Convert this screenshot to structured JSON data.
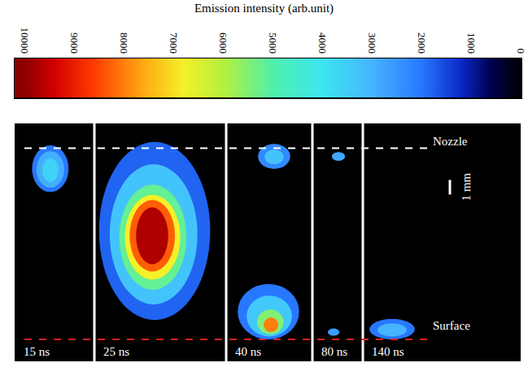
{
  "chart_data": {
    "type": "image_sequence",
    "title": "Emission intensity (arb.unit)",
    "colorbar": {
      "range": [
        10200,
        0
      ],
      "ticks": [
        10000,
        9000,
        8000,
        7000,
        6000,
        5000,
        4000,
        3000,
        2000,
        1000,
        0
      ]
    },
    "zlim": [
      0,
      10000
    ],
    "ylim": [
      14.6,
      -1.7
    ],
    "tick_labels": false,
    "nozzle": {
      "label": "Nozzle",
      "y": 0
    },
    "surface": {
      "label": "Surface",
      "y": 13.1
    },
    "scale_bar": {
      "label": "1 mm",
      "length": 1
    },
    "panels": [
      {
        "label": "15 ns",
        "blobs": [
          {
            "x": 2.44,
            "y": 1.4,
            "rx": 1.25,
            "ry": 1.6,
            "intensity": 2000
          },
          {
            "x": 2.44,
            "y": 1.45,
            "rx": 0.95,
            "ry": 1.25,
            "intensity": 2900
          },
          {
            "x": 2.44,
            "y": 1.5,
            "rx": 0.55,
            "ry": 0.8,
            "intensity": 3600
          }
        ]
      },
      {
        "label": "25 ns",
        "blobs": [
          {
            "x": 4.12,
            "y": 5.67,
            "rx": 3.8,
            "ry": 6.1,
            "intensity": 1800
          },
          {
            "x": 4.05,
            "y": 5.9,
            "rx": 3.0,
            "ry": 4.8,
            "intensity": 3300
          },
          {
            "x": 4.0,
            "y": 6.1,
            "rx": 2.3,
            "ry": 3.6,
            "intensity": 5200
          },
          {
            "x": 3.98,
            "y": 6.1,
            "rx": 1.9,
            "ry": 2.9,
            "intensity": 6800
          },
          {
            "x": 3.96,
            "y": 6.0,
            "rx": 1.55,
            "ry": 2.45,
            "intensity": 8300
          },
          {
            "x": 3.95,
            "y": 6.0,
            "rx": 1.1,
            "ry": 1.95,
            "intensity": 9700
          }
        ]
      },
      {
        "label": "40 ns",
        "blobs": [
          {
            "x": 3.28,
            "y": 0.56,
            "rx": 1.1,
            "ry": 0.85,
            "intensity": 2300
          },
          {
            "x": 3.28,
            "y": 0.6,
            "rx": 0.65,
            "ry": 0.5,
            "intensity": 3300
          },
          {
            "x": 2.89,
            "y": 11.2,
            "rx": 2.1,
            "ry": 1.9,
            "intensity": 2000
          },
          {
            "x": 2.95,
            "y": 11.5,
            "rx": 1.55,
            "ry": 1.4,
            "intensity": 3400
          },
          {
            "x": 3.02,
            "y": 11.9,
            "rx": 0.9,
            "ry": 0.85,
            "intensity": 5500
          },
          {
            "x": 3.06,
            "y": 12.1,
            "rx": 0.5,
            "ry": 0.5,
            "intensity": 8000
          }
        ]
      },
      {
        "label": "80 ns",
        "blobs": [
          {
            "x": 1.78,
            "y": 0.56,
            "rx": 0.45,
            "ry": 0.3,
            "intensity": 2800
          },
          {
            "x": 1.45,
            "y": 12.6,
            "rx": 0.4,
            "ry": 0.25,
            "intensity": 2600
          }
        ]
      },
      {
        "label": "140 ns",
        "blobs": [
          {
            "x": 2.0,
            "y": 12.4,
            "rx": 1.55,
            "ry": 0.7,
            "intensity": 2000
          },
          {
            "x": 2.0,
            "y": 12.45,
            "rx": 1.0,
            "ry": 0.45,
            "intensity": 3000
          }
        ]
      }
    ]
  }
}
